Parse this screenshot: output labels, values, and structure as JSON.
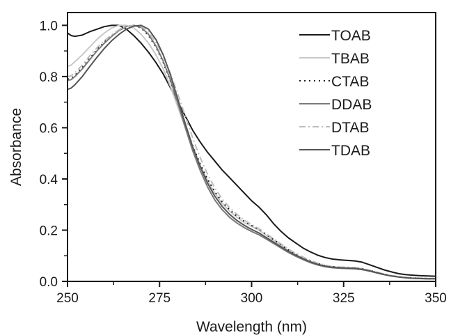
{
  "chart_data": {
    "type": "line",
    "title": "",
    "xlabel": "Wavelength (nm)",
    "ylabel": "Absorbance",
    "xlim": [
      250,
      350
    ],
    "ylim": [
      0.0,
      1.05
    ],
    "xticks": [
      250,
      275,
      300,
      325,
      350
    ],
    "xtick_labels": [
      "250",
      "275",
      "300",
      "325",
      "350"
    ],
    "yticks": [
      0.0,
      0.2,
      0.4,
      0.6,
      0.8,
      1.0
    ],
    "ytick_labels": [
      "0.0",
      "0.2",
      "0.4",
      "0.6",
      "0.8",
      "1.0"
    ],
    "grid": false,
    "legend_position": "top-right",
    "series": [
      {
        "name": "TOAB",
        "color": "#1a1a1a",
        "dash": "solid",
        "points": [
          [
            250,
            0.97
          ],
          [
            251,
            0.96
          ],
          [
            252,
            0.957
          ],
          [
            254,
            0.962
          ],
          [
            256,
            0.975
          ],
          [
            258,
            0.985
          ],
          [
            260,
            0.995
          ],
          [
            262,
            1.0
          ],
          [
            264,
            1.0
          ],
          [
            266,
            0.985
          ],
          [
            268,
            0.96
          ],
          [
            270,
            0.93
          ],
          [
            272,
            0.895
          ],
          [
            274,
            0.855
          ],
          [
            276,
            0.81
          ],
          [
            278,
            0.755
          ],
          [
            280,
            0.7
          ],
          [
            282,
            0.645
          ],
          [
            284,
            0.59
          ],
          [
            286,
            0.545
          ],
          [
            288,
            0.505
          ],
          [
            290,
            0.47
          ],
          [
            292,
            0.435
          ],
          [
            294,
            0.405
          ],
          [
            296,
            0.375
          ],
          [
            298,
            0.345
          ],
          [
            300,
            0.315
          ],
          [
            302,
            0.29
          ],
          [
            304,
            0.26
          ],
          [
            306,
            0.225
          ],
          [
            308,
            0.195
          ],
          [
            310,
            0.17
          ],
          [
            312,
            0.15
          ],
          [
            314,
            0.13
          ],
          [
            316,
            0.115
          ],
          [
            318,
            0.102
          ],
          [
            320,
            0.093
          ],
          [
            322,
            0.087
          ],
          [
            324,
            0.084
          ],
          [
            326,
            0.082
          ],
          [
            328,
            0.08
          ],
          [
            330,
            0.075
          ],
          [
            332,
            0.065
          ],
          [
            334,
            0.055
          ],
          [
            336,
            0.045
          ],
          [
            338,
            0.037
          ],
          [
            340,
            0.03
          ],
          [
            342,
            0.026
          ],
          [
            344,
            0.024
          ],
          [
            346,
            0.022
          ],
          [
            348,
            0.021
          ],
          [
            350,
            0.02
          ]
        ]
      },
      {
        "name": "TBAB",
        "color": "#c8c8c8",
        "dash": "solid",
        "points": [
          [
            250,
            0.84
          ],
          [
            251,
            0.845
          ],
          [
            252,
            0.858
          ],
          [
            254,
            0.885
          ],
          [
            256,
            0.915
          ],
          [
            258,
            0.945
          ],
          [
            260,
            0.97
          ],
          [
            262,
            0.99
          ],
          [
            264,
            1.0
          ],
          [
            266,
            1.0
          ],
          [
            268,
            0.99
          ],
          [
            270,
            0.965
          ],
          [
            272,
            0.93
          ],
          [
            274,
            0.885
          ],
          [
            276,
            0.83
          ],
          [
            278,
            0.76
          ],
          [
            280,
            0.68
          ],
          [
            282,
            0.6
          ],
          [
            284,
            0.525
          ],
          [
            286,
            0.455
          ],
          [
            288,
            0.395
          ],
          [
            290,
            0.345
          ],
          [
            292,
            0.305
          ],
          [
            294,
            0.275
          ],
          [
            296,
            0.25
          ],
          [
            298,
            0.23
          ],
          [
            300,
            0.215
          ],
          [
            302,
            0.2
          ],
          [
            304,
            0.18
          ],
          [
            306,
            0.16
          ],
          [
            308,
            0.14
          ],
          [
            310,
            0.12
          ],
          [
            312,
            0.105
          ],
          [
            314,
            0.09
          ],
          [
            316,
            0.078
          ],
          [
            318,
            0.068
          ],
          [
            320,
            0.06
          ],
          [
            322,
            0.056
          ],
          [
            324,
            0.054
          ],
          [
            326,
            0.053
          ],
          [
            328,
            0.052
          ],
          [
            330,
            0.048
          ],
          [
            332,
            0.042
          ],
          [
            334,
            0.034
          ],
          [
            336,
            0.027
          ],
          [
            338,
            0.021
          ],
          [
            340,
            0.017
          ],
          [
            342,
            0.014
          ],
          [
            344,
            0.012
          ],
          [
            346,
            0.011
          ],
          [
            348,
            0.01
          ],
          [
            350,
            0.01
          ]
        ]
      },
      {
        "name": "CTAB",
        "color": "#1a1a1a",
        "dash": "dotted",
        "points": [
          [
            250,
            0.79
          ],
          [
            251,
            0.793
          ],
          [
            252,
            0.805
          ],
          [
            254,
            0.835
          ],
          [
            256,
            0.87
          ],
          [
            258,
            0.905
          ],
          [
            260,
            0.935
          ],
          [
            262,
            0.96
          ],
          [
            264,
            0.982
          ],
          [
            266,
            0.996
          ],
          [
            268,
            1.0
          ],
          [
            270,
            0.99
          ],
          [
            272,
            0.96
          ],
          [
            274,
            0.915
          ],
          [
            276,
            0.855
          ],
          [
            278,
            0.78
          ],
          [
            280,
            0.695
          ],
          [
            282,
            0.61
          ],
          [
            284,
            0.53
          ],
          [
            286,
            0.46
          ],
          [
            288,
            0.4
          ],
          [
            290,
            0.35
          ],
          [
            292,
            0.31
          ],
          [
            294,
            0.28
          ],
          [
            296,
            0.255
          ],
          [
            298,
            0.235
          ],
          [
            300,
            0.218
          ],
          [
            302,
            0.203
          ],
          [
            304,
            0.183
          ],
          [
            306,
            0.163
          ],
          [
            308,
            0.143
          ],
          [
            310,
            0.123
          ],
          [
            312,
            0.107
          ],
          [
            314,
            0.092
          ],
          [
            316,
            0.079
          ],
          [
            318,
            0.069
          ],
          [
            320,
            0.061
          ],
          [
            322,
            0.057
          ],
          [
            324,
            0.055
          ],
          [
            326,
            0.054
          ],
          [
            328,
            0.053
          ],
          [
            330,
            0.049
          ],
          [
            332,
            0.043
          ],
          [
            334,
            0.035
          ],
          [
            336,
            0.028
          ],
          [
            338,
            0.022
          ],
          [
            340,
            0.018
          ],
          [
            342,
            0.015
          ],
          [
            344,
            0.013
          ],
          [
            346,
            0.012
          ],
          [
            348,
            0.011
          ],
          [
            350,
            0.011
          ]
        ]
      },
      {
        "name": "DDAB",
        "color": "#7a7a7a",
        "dash": "solid",
        "points": [
          [
            250,
            0.785
          ],
          [
            251,
            0.788
          ],
          [
            252,
            0.8
          ],
          [
            254,
            0.83
          ],
          [
            256,
            0.865
          ],
          [
            258,
            0.9
          ],
          [
            260,
            0.93
          ],
          [
            262,
            0.957
          ],
          [
            264,
            0.98
          ],
          [
            266,
            0.995
          ],
          [
            268,
            1.0
          ],
          [
            270,
            0.992
          ],
          [
            272,
            0.965
          ],
          [
            274,
            0.92
          ],
          [
            276,
            0.86
          ],
          [
            278,
            0.785
          ],
          [
            280,
            0.695
          ],
          [
            282,
            0.6
          ],
          [
            284,
            0.51
          ],
          [
            286,
            0.435
          ],
          [
            288,
            0.37
          ],
          [
            290,
            0.318
          ],
          [
            292,
            0.28
          ],
          [
            294,
            0.25
          ],
          [
            296,
            0.228
          ],
          [
            298,
            0.21
          ],
          [
            300,
            0.195
          ],
          [
            302,
            0.182
          ],
          [
            304,
            0.165
          ],
          [
            306,
            0.148
          ],
          [
            308,
            0.13
          ],
          [
            310,
            0.113
          ],
          [
            312,
            0.098
          ],
          [
            314,
            0.085
          ],
          [
            316,
            0.073
          ],
          [
            318,
            0.064
          ],
          [
            320,
            0.057
          ],
          [
            322,
            0.053
          ],
          [
            324,
            0.051
          ],
          [
            326,
            0.05
          ],
          [
            328,
            0.049
          ],
          [
            330,
            0.046
          ],
          [
            332,
            0.04
          ],
          [
            334,
            0.033
          ],
          [
            336,
            0.026
          ],
          [
            338,
            0.021
          ],
          [
            340,
            0.017
          ],
          [
            342,
            0.014
          ],
          [
            344,
            0.012
          ],
          [
            346,
            0.011
          ],
          [
            348,
            0.01
          ],
          [
            350,
            0.01
          ]
        ]
      },
      {
        "name": "DTAB",
        "color": "#bdbdbd",
        "dash": "dashdot",
        "points": [
          [
            250,
            0.8
          ],
          [
            251,
            0.803
          ],
          [
            252,
            0.815
          ],
          [
            254,
            0.845
          ],
          [
            256,
            0.88
          ],
          [
            258,
            0.912
          ],
          [
            260,
            0.94
          ],
          [
            262,
            0.963
          ],
          [
            264,
            0.983
          ],
          [
            266,
            0.996
          ],
          [
            268,
            1.0
          ],
          [
            270,
            0.995
          ],
          [
            272,
            0.975
          ],
          [
            274,
            0.935
          ],
          [
            276,
            0.88
          ],
          [
            278,
            0.81
          ],
          [
            280,
            0.73
          ],
          [
            282,
            0.645
          ],
          [
            284,
            0.56
          ],
          [
            286,
            0.485
          ],
          [
            288,
            0.42
          ],
          [
            290,
            0.365
          ],
          [
            292,
            0.322
          ],
          [
            294,
            0.288
          ],
          [
            296,
            0.262
          ],
          [
            298,
            0.24
          ],
          [
            300,
            0.222
          ],
          [
            302,
            0.206
          ],
          [
            304,
            0.186
          ],
          [
            306,
            0.166
          ],
          [
            308,
            0.146
          ],
          [
            310,
            0.126
          ],
          [
            312,
            0.11
          ],
          [
            314,
            0.095
          ],
          [
            316,
            0.082
          ],
          [
            318,
            0.071
          ],
          [
            320,
            0.063
          ],
          [
            322,
            0.058
          ],
          [
            324,
            0.056
          ],
          [
            326,
            0.055
          ],
          [
            328,
            0.054
          ],
          [
            330,
            0.05
          ],
          [
            332,
            0.044
          ],
          [
            334,
            0.036
          ],
          [
            336,
            0.029
          ],
          [
            338,
            0.023
          ],
          [
            340,
            0.019
          ],
          [
            342,
            0.016
          ],
          [
            344,
            0.014
          ],
          [
            346,
            0.013
          ],
          [
            348,
            0.012
          ],
          [
            350,
            0.012
          ]
        ]
      },
      {
        "name": "TDAB",
        "color": "#555555",
        "dash": "solid",
        "points": [
          [
            250,
            0.75
          ],
          [
            251,
            0.755
          ],
          [
            252,
            0.768
          ],
          [
            254,
            0.8
          ],
          [
            256,
            0.838
          ],
          [
            258,
            0.875
          ],
          [
            260,
            0.91
          ],
          [
            262,
            0.94
          ],
          [
            264,
            0.965
          ],
          [
            266,
            0.985
          ],
          [
            268,
            0.997
          ],
          [
            270,
            1.0
          ],
          [
            272,
            0.985
          ],
          [
            274,
            0.945
          ],
          [
            276,
            0.885
          ],
          [
            278,
            0.805
          ],
          [
            280,
            0.71
          ],
          [
            282,
            0.615
          ],
          [
            284,
            0.525
          ],
          [
            286,
            0.45
          ],
          [
            288,
            0.385
          ],
          [
            290,
            0.333
          ],
          [
            292,
            0.293
          ],
          [
            294,
            0.262
          ],
          [
            296,
            0.238
          ],
          [
            298,
            0.219
          ],
          [
            300,
            0.203
          ],
          [
            302,
            0.189
          ],
          [
            304,
            0.171
          ],
          [
            306,
            0.153
          ],
          [
            308,
            0.135
          ],
          [
            310,
            0.117
          ],
          [
            312,
            0.102
          ],
          [
            314,
            0.088
          ],
          [
            316,
            0.076
          ],
          [
            318,
            0.066
          ],
          [
            320,
            0.059
          ],
          [
            322,
            0.055
          ],
          [
            324,
            0.053
          ],
          [
            326,
            0.052
          ],
          [
            328,
            0.051
          ],
          [
            330,
            0.047
          ],
          [
            332,
            0.041
          ],
          [
            334,
            0.034
          ],
          [
            336,
            0.027
          ],
          [
            338,
            0.021
          ],
          [
            340,
            0.017
          ],
          [
            342,
            0.014
          ],
          [
            344,
            0.012
          ],
          [
            346,
            0.011
          ],
          [
            348,
            0.01
          ],
          [
            350,
            0.01
          ]
        ]
      }
    ]
  }
}
